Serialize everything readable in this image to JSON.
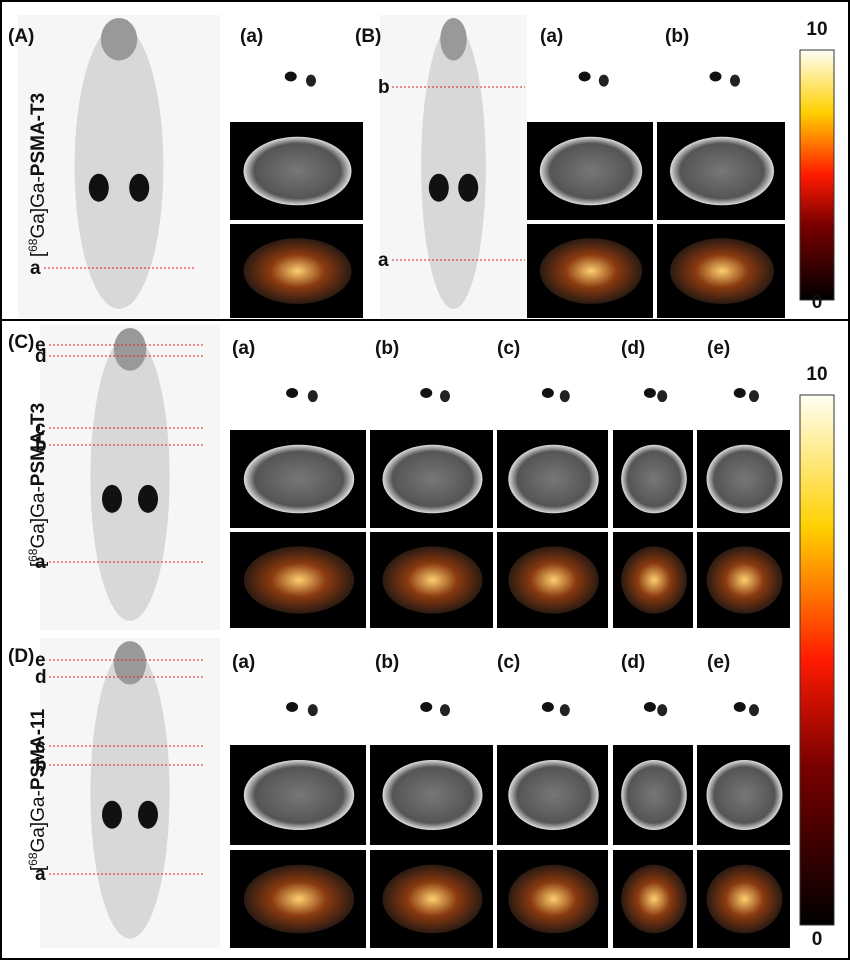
{
  "panels": [
    {
      "label": "(A)",
      "tracer": {
        "open": "[",
        "mass": "68",
        "element": "Ga]Ga-",
        "name": "PSMA-T3"
      },
      "slice_marks": [
        "a"
      ],
      "columns": [
        "(a)"
      ]
    },
    {
      "label": "(B)",
      "slice_marks": [
        "b",
        "a"
      ],
      "columns": [
        "(a)",
        "(b)"
      ]
    },
    {
      "label": "(C)",
      "tracer": {
        "open": "[",
        "mass": "68",
        "element": "Ga]Ga-",
        "name": "PSMA-T3"
      },
      "slice_marks": [
        "e",
        "d",
        "c",
        "b",
        "a"
      ],
      "columns": [
        "(a)",
        "(b)",
        "(c)",
        "(d)",
        "(e)"
      ]
    },
    {
      "label": "(D)",
      "tracer": {
        "open": "[",
        "mass": "68",
        "element": "Ga]Ga-",
        "name": "PSMA-11"
      },
      "slice_marks": [
        "e",
        "d",
        "c",
        "b",
        "a"
      ],
      "columns": [
        "(a)",
        "(b)",
        "(c)",
        "(d)",
        "(e)"
      ]
    }
  ],
  "colorbars": [
    {
      "max": "10",
      "min": "0"
    },
    {
      "max": "10",
      "min": "0"
    }
  ]
}
